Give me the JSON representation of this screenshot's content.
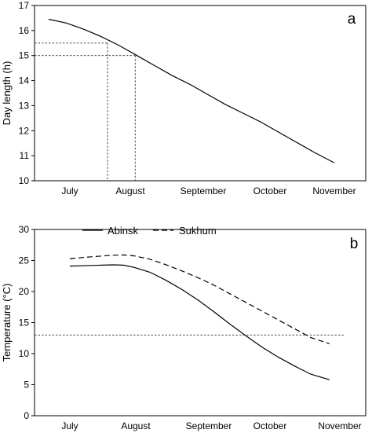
{
  "chart_data": [
    {
      "type": "line",
      "panel_label": "a",
      "ylabel": "Day length (h)",
      "xlabel": "",
      "ylim": [
        10,
        17
      ],
      "yticks": [
        10,
        11,
        12,
        13,
        14,
        15,
        16,
        17
      ],
      "xlim": [
        0,
        5
      ],
      "categories": [
        "July",
        "August",
        "September",
        "October",
        "November"
      ],
      "grid": false,
      "series": [
        {
          "name": "",
          "style": "solid",
          "color": "#000000",
          "x": [
            0.0,
            0.3,
            0.6,
            0.9,
            1.2,
            1.5,
            1.8,
            2.1,
            2.4,
            2.7,
            3.0,
            3.3,
            3.6,
            3.9,
            4.2,
            4.5,
            4.85
          ],
          "y": [
            16.45,
            16.3,
            16.05,
            15.75,
            15.4,
            15.0,
            14.6,
            14.2,
            13.85,
            13.45,
            13.05,
            12.7,
            12.35,
            11.95,
            11.55,
            11.15,
            10.72
          ]
        }
      ],
      "reference_lines": [
        {
          "value": 15.5,
          "x_end": 1.0
        },
        {
          "value": 15.0,
          "x_end": 1.47
        }
      ],
      "drop_lines": [
        {
          "x": 1.0,
          "y_top": 15.5
        },
        {
          "x": 1.47,
          "y_top": 15.0
        }
      ]
    },
    {
      "type": "line",
      "panel_label": "b",
      "ylabel": "Temperature (°C)",
      "xlabel": "",
      "ylim": [
        0,
        30
      ],
      "yticks": [
        0,
        5,
        10,
        15,
        20,
        25,
        30
      ],
      "xlim": [
        0,
        5
      ],
      "categories": [
        "July",
        "August",
        "September",
        "October",
        "November"
      ],
      "grid": false,
      "legend_position": "top-left",
      "series": [
        {
          "name": "Abinsk",
          "style": "solid",
          "color": "#000000",
          "x": [
            0.0,
            0.4,
            0.8,
            1.0,
            1.2,
            1.5,
            1.8,
            2.1,
            2.4,
            2.7,
            3.0,
            3.3,
            3.6,
            3.9,
            4.2,
            4.5,
            4.85
          ],
          "y": [
            24.1,
            24.2,
            24.3,
            24.25,
            23.9,
            23.1,
            21.8,
            20.3,
            18.6,
            16.7,
            14.7,
            12.8,
            11.0,
            9.4,
            8.0,
            6.7,
            5.8
          ]
        },
        {
          "name": "Sukhum",
          "style": "dashed",
          "color": "#000000",
          "x": [
            0.0,
            0.4,
            0.8,
            1.0,
            1.2,
            1.5,
            1.8,
            2.1,
            2.4,
            2.7,
            3.0,
            3.3,
            3.6,
            3.9,
            4.2,
            4.5,
            4.85
          ],
          "y": [
            25.3,
            25.6,
            25.85,
            25.9,
            25.75,
            25.2,
            24.3,
            23.3,
            22.2,
            21.0,
            19.6,
            18.2,
            16.8,
            15.4,
            14.0,
            12.6,
            11.6
          ]
        }
      ],
      "reference_lines": [
        {
          "value": 13.0,
          "x_end": 5.0
        }
      ]
    }
  ]
}
